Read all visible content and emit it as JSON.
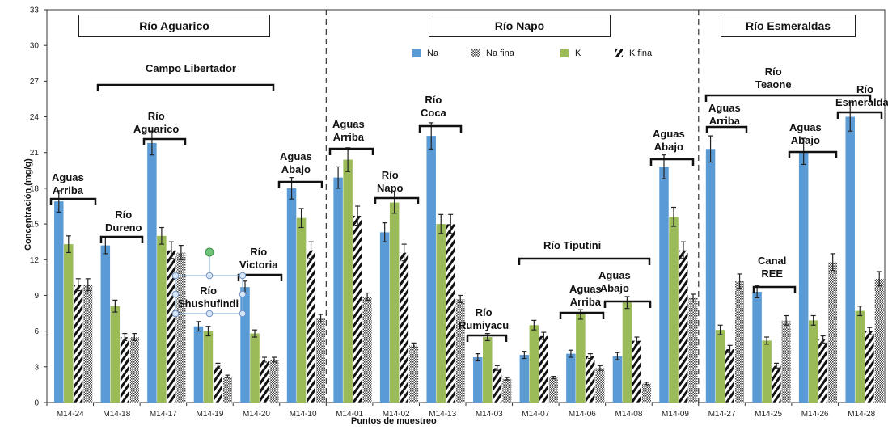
{
  "chart_data": {
    "type": "bar",
    "title": "",
    "xlabel": "Puntos de muestreo",
    "ylabel": "Concentración (mg/g)",
    "ylim": [
      0,
      33
    ],
    "yticks": [
      "0",
      "3",
      "6",
      "9",
      "12",
      "15",
      "18",
      "21",
      "24",
      "27",
      "30",
      "33"
    ],
    "grid": false,
    "legend_position": "top",
    "categories": [
      "M14-24",
      "M14-18",
      "M14-17",
      "M14-19",
      "M14-20",
      "M14-10",
      "M14-01",
      "M14-02",
      "M14-13",
      "M14-03",
      "M14-07",
      "M14-06",
      "M14-08",
      "M14-09",
      "M14-27",
      "M14-25",
      "M14-26",
      "M14-28"
    ],
    "series": [
      {
        "name": "Na",
        "color": "#5b9bd5",
        "pattern": "solid",
        "values": [
          16.9,
          13.2,
          21.8,
          6.4,
          9.7,
          18.0,
          18.9,
          14.3,
          22.4,
          3.8,
          4.0,
          4.1,
          3.9,
          19.8,
          21.3,
          9.3,
          21.1,
          24.0
        ],
        "errors": [
          0.9,
          0.7,
          1.0,
          0.4,
          0.5,
          0.9,
          0.9,
          0.8,
          1.1,
          0.3,
          0.3,
          0.3,
          0.3,
          1.0,
          1.1,
          0.5,
          1.1,
          1.2
        ]
      },
      {
        "name": "K",
        "color": "#9bbb59",
        "pattern": "solid",
        "values": [
          13.3,
          8.1,
          14.0,
          6.0,
          5.8,
          15.5,
          20.4,
          16.8,
          15.0,
          5.5,
          6.5,
          7.4,
          8.4,
          15.6,
          6.1,
          5.2,
          6.9,
          7.7
        ],
        "errors": [
          0.7,
          0.5,
          0.7,
          0.4,
          0.3,
          0.8,
          1.0,
          0.9,
          0.8,
          0.3,
          0.4,
          0.4,
          0.5,
          0.8,
          0.4,
          0.3,
          0.4,
          0.4
        ]
      },
      {
        "name": "K fina",
        "color": "#111111",
        "pattern": "diagonal",
        "values": [
          9.9,
          5.5,
          12.8,
          3.1,
          3.6,
          12.8,
          15.7,
          12.6,
          15.0,
          2.9,
          5.6,
          3.9,
          5.2,
          12.8,
          4.5,
          3.1,
          5.3,
          6.0
        ],
        "errors": [
          0.5,
          0.3,
          0.7,
          0.2,
          0.2,
          0.7,
          0.8,
          0.7,
          0.8,
          0.2,
          0.3,
          0.2,
          0.3,
          0.7,
          0.3,
          0.2,
          0.3,
          0.3
        ]
      },
      {
        "name": "Na fina",
        "color": "#888888",
        "pattern": "crosshatch",
        "values": [
          9.9,
          5.5,
          12.6,
          2.2,
          3.6,
          7.1,
          8.9,
          4.8,
          8.7,
          2.0,
          2.1,
          2.9,
          1.6,
          8.8,
          10.2,
          6.9,
          11.8,
          10.4
        ],
        "errors": [
          0.5,
          0.3,
          0.6,
          0.1,
          0.2,
          0.3,
          0.3,
          0.2,
          0.3,
          0.1,
          0.1,
          0.2,
          0.1,
          0.3,
          0.6,
          0.4,
          0.7,
          0.6
        ]
      }
    ]
  },
  "legend": [
    {
      "name": "Na",
      "color": "#5b9bd5",
      "pattern": "solid"
    },
    {
      "name": "Na fina",
      "color": "#888888",
      "pattern": "crosshatch"
    },
    {
      "name": "K",
      "color": "#9bbb59",
      "pattern": "solid"
    },
    {
      "name": "K fina",
      "color": "#111111",
      "pattern": "diagonal"
    }
  ],
  "rivers": [
    {
      "name": "Río Aguarico",
      "color": "#a9c6e8"
    },
    {
      "name": "Río Napo",
      "color": "#f9c49a"
    },
    {
      "name": "Río Esmeraldas",
      "color": "#d3e4b4"
    }
  ],
  "annotations": {
    "campo_libertador": "Campo Libertador",
    "aguas_arriba_1": "Aguas\nArriba",
    "rio_dureno": "Río\nDureno",
    "rio_aguarico": "Río\nAguarico",
    "rio_shushufindi": "Río\nShushufindi",
    "rio_victoria": "Río\nVictoria",
    "aguas_abajo_1": "Aguas\nAbajo",
    "aguas_arriba_2": "Aguas\nArriba",
    "rio_napo": "Río\nNapo",
    "rio_coca": "Río\nCoca",
    "rio_rumiyacu": "Río\nRumiyacu",
    "rio_tiputini": "Río  Tiputini",
    "aguas_arriba_3": "Aguas\nArriba",
    "aguas_abajo_2": "Aguas\nAbajo",
    "aguas_abajo_3": "Aguas\nAbajo",
    "rio_teaone": "Río\nTeaone",
    "aguas_arriba_4": "Aguas\nArriba",
    "canal_ree": "Canal\nREE",
    "aguas_abajo_4": "Aguas\nAbajo",
    "rio_esmeraldas": "Río\nEsmeraldas"
  }
}
